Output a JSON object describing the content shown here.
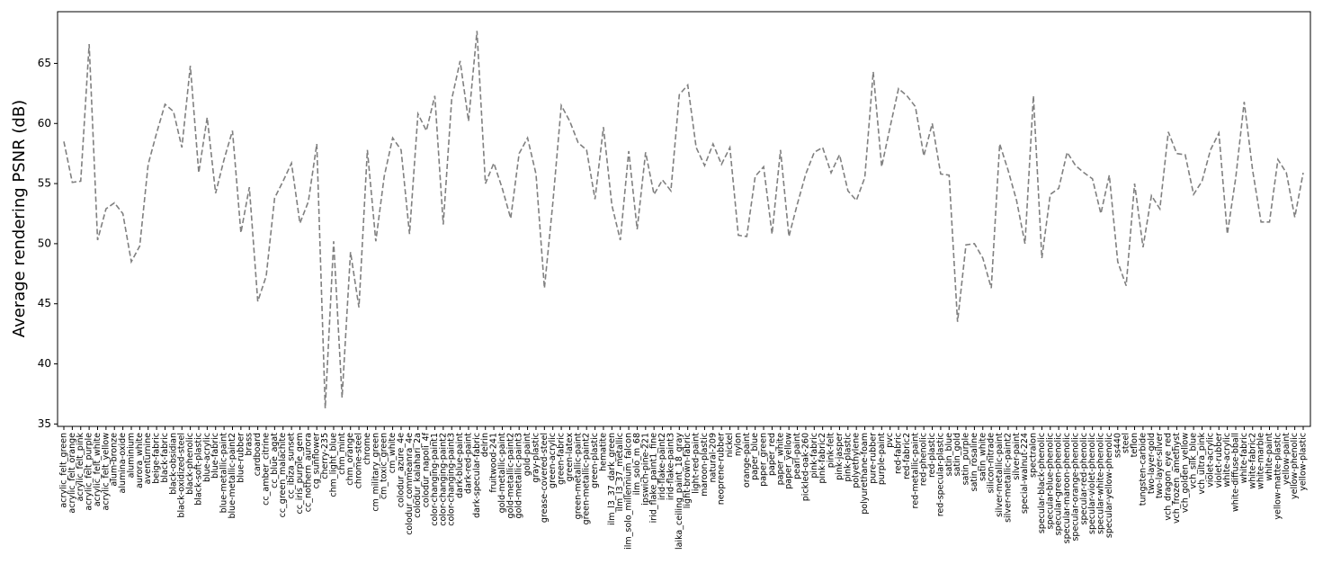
{
  "chart_data": {
    "type": "line",
    "y_label": "Average rendering PSNR (dB)",
    "categories": [
      "acrylic_felt_green",
      "acrylic_felt_orange",
      "acrylic_felt_pink",
      "acrylic_felt_purple",
      "acrylic_felt_white",
      "acrylic_felt_yellow",
      "alum-bronze",
      "alumina-oxide",
      "aluminium",
      "aurora_white",
      "aventurnine",
      "beige-fabric",
      "black-fabric",
      "black-obsidian",
      "black-oxidized-steel",
      "black-phenolic",
      "black-soft-plastic",
      "blue-acrylic",
      "blue-fabric",
      "blue-metallic-paint",
      "blue-metallic-paint2",
      "blue-rubber",
      "brass",
      "cardboard",
      "cc_amber_citrine",
      "cc_blue_agat",
      "cc_green_malachite",
      "cc_ibiza_sunset",
      "cc_iris_purple_gem",
      "cc_nothern_aurora",
      "cg_sunflower",
      "cherry-235",
      "chm_light_blue",
      "chm_mint",
      "chm_orange",
      "chrome-steel",
      "chrome",
      "cm_military_green",
      "cm_toxic_green",
      "cm_white",
      "colodur_azure_4e",
      "colodur_commeanra_4e",
      "colodur_kalahari_2a",
      "colodur_napoli_4f",
      "color-changing-paint1",
      "color-changing-paint2",
      "color-changing-paint3",
      "dark-blue-paint",
      "dark-red-paint",
      "dark-specular-fabric",
      "delrin",
      "fruitwood-241",
      "gold-metallic-paint",
      "gold-metallic-paint2",
      "gold-metallic-paint3",
      "gold-paint",
      "gray-plastic",
      "grease-covered-steel",
      "green-acrylic",
      "green-fabric",
      "green-latex",
      "green-metallic-paint",
      "green-metallic-paint2",
      "green-plastic",
      "hematite",
      "ilm_l3_37_dark_green",
      "ilm_l3_37_metallic",
      "ilm_solo_millennium_falcon",
      "ilm_solo_m_68",
      "ipswich-pine-221",
      "irid_flake_paint1_fine",
      "irid-flake-paint2",
      "irid-flake-paint3",
      "laika_ceiling_paint_18_gray",
      "light-brown-fabric",
      "light-red-paint",
      "maroon-plastic",
      "natural-209",
      "neoprene-rubber",
      "nickel",
      "nylon",
      "orange-paint",
      "paper_blue",
      "paper_green",
      "paper_red",
      "paper_white",
      "paper_yellow",
      "pearl-paint",
      "pickled-oak-260",
      "pink-fabric",
      "pink-fabric2",
      "pink-felt",
      "pink-jasper",
      "pink-plastic",
      "polyethylene",
      "polyurethane-foam",
      "pure-rubber",
      "purple-paint",
      "pvc",
      "red-fabric",
      "red-fabric2",
      "red-metallic-paint",
      "red-phenolic",
      "red-plastic",
      "red-specular-plastic",
      "satin_blue",
      "satin_gold",
      "satin_purple",
      "satin_rosaline",
      "satin_white",
      "silicon-nitrade",
      "silver-metallic-paint",
      "silver-metallic-paint2",
      "silver-paint",
      "special-walnut-224",
      "spectralon",
      "specular-black-phenolic",
      "specular-blue-phenolic",
      "specular-green-phenolic",
      "specular-maroon-phenolic",
      "specular-orange-phenolic",
      "specular-red-phenolic",
      "specular-violet-phenolic",
      "specular-white-phenolic",
      "specular-yellow-phenolic",
      "ss440",
      "steel",
      "teflon",
      "tungsten-carbide",
      "two-layer-gold",
      "two-layer-silver",
      "vch_dragon_eye_red",
      "vch_frozen_amethyst",
      "vch_golden_yellow",
      "vch_silk_blue",
      "vch_ultra_pink",
      "violet-acrylic",
      "violet-rubber",
      "white-acrylic",
      "white-diffuse-bball",
      "white-fabric",
      "white-fabric2",
      "white-marble",
      "white-paint",
      "yellow-matte-plastic",
      "yellow-paint",
      "yellow-phenolic",
      "yellow-plastic"
    ],
    "values": [
      58.5,
      55.1,
      55.2,
      66.6,
      50.3,
      52.9,
      53.4,
      52.5,
      48.5,
      49.8,
      56.6,
      59.2,
      61.6,
      61.0,
      58.0,
      64.8,
      55.9,
      60.5,
      54.2,
      57.0,
      59.4,
      50.9,
      54.7,
      45.2,
      47.3,
      53.8,
      55.2,
      56.7,
      51.7,
      53.5,
      58.3,
      36.3,
      50.2,
      37.2,
      49.3,
      44.7,
      57.8,
      50.2,
      55.6,
      58.8,
      57.8,
      50.8,
      60.8,
      59.4,
      62.3,
      51.6,
      62.0,
      65.2,
      60.2,
      67.7,
      55.0,
      56.7,
      54.6,
      52.1,
      57.5,
      58.8,
      55.8,
      46.3,
      53.4,
      61.5,
      60.2,
      58.4,
      57.8,
      53.7,
      59.7,
      53.2,
      50.3,
      57.7,
      51.2,
      57.6,
      54.1,
      55.3,
      54.4,
      62.4,
      63.2,
      58.0,
      56.5,
      58.3,
      56.6,
      58.0,
      50.7,
      50.6,
      55.6,
      56.4,
      50.8,
      57.8,
      50.6,
      53.3,
      55.8,
      57.6,
      58.0,
      55.9,
      57.4,
      54.4,
      53.6,
      55.5,
      64.3,
      56.4,
      59.7,
      62.9,
      62.3,
      61.4,
      57.3,
      60.0,
      55.8,
      55.7,
      43.5,
      49.9,
      50.0,
      48.8,
      46.3,
      58.3,
      56.1,
      53.6,
      50.0,
      62.3,
      48.8,
      54.1,
      54.6,
      57.6,
      56.5,
      55.9,
      55.4,
      52.5,
      55.7,
      48.5,
      46.5,
      55.0,
      49.7,
      54.0,
      52.9,
      59.3,
      57.5,
      57.4,
      54.1,
      55.2,
      57.8,
      59.2,
      50.8,
      55.5,
      61.8,
      56.1,
      51.8,
      51.8,
      57.0,
      55.9,
      52.2,
      55.9
    ],
    "color": "#808080",
    "line_style": "dashed",
    "ylim": [
      34.8,
      69.3
    ],
    "yticks": [
      35,
      40,
      45,
      50,
      55,
      60,
      65
    ],
    "grid": false
  }
}
